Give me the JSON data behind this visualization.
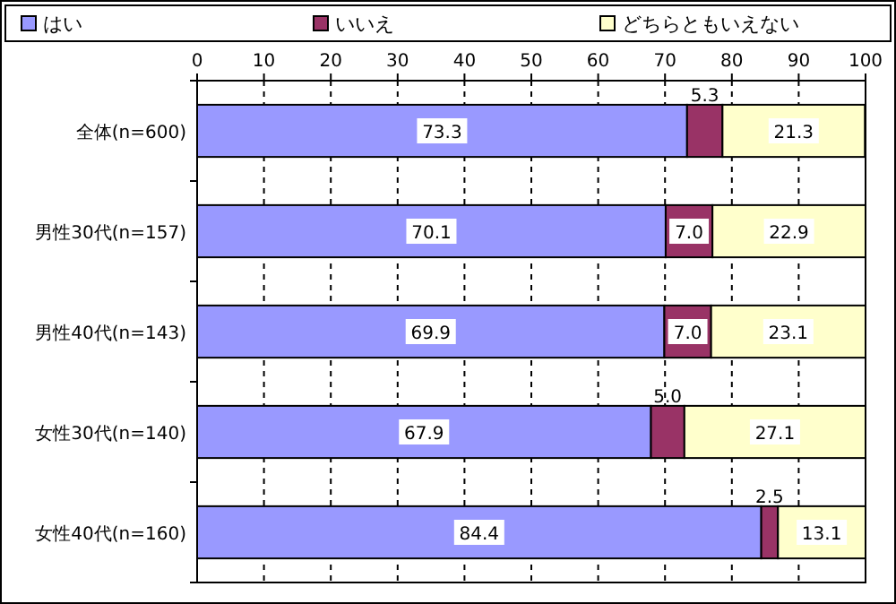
{
  "chart_data": {
    "type": "bar",
    "orientation": "horizontal",
    "stacked": true,
    "categories": [
      "全体(n=600)",
      "男性30代(n=157)",
      "男性40代(n=143)",
      "女性30代(n=140)",
      "女性40代(n=160)"
    ],
    "series": [
      {
        "name": "はい",
        "color": "#9999ff",
        "values": [
          73.3,
          70.1,
          69.9,
          67.9,
          84.4
        ],
        "value_labels": [
          "73.3",
          "70.1",
          "69.9",
          "67.9",
          "84.4"
        ]
      },
      {
        "name": "いいえ",
        "color": "#993366",
        "values": [
          5.3,
          7.0,
          7.0,
          5.0,
          2.5
        ],
        "value_labels": [
          "5.3",
          "7.0",
          "7.0",
          "5.0",
          "2.5"
        ]
      },
      {
        "name": "どちらともいえない",
        "color": "#ffffcc",
        "values": [
          21.3,
          22.9,
          23.1,
          27.1,
          13.1
        ],
        "value_labels": [
          "21.3",
          "22.9",
          "23.1",
          "27.1",
          "13.1"
        ]
      }
    ],
    "xlim": [
      0,
      100
    ],
    "xticks": [
      0,
      10,
      20,
      30,
      40,
      50,
      60,
      70,
      80,
      90,
      100
    ],
    "grid": "x",
    "legend": "top"
  }
}
